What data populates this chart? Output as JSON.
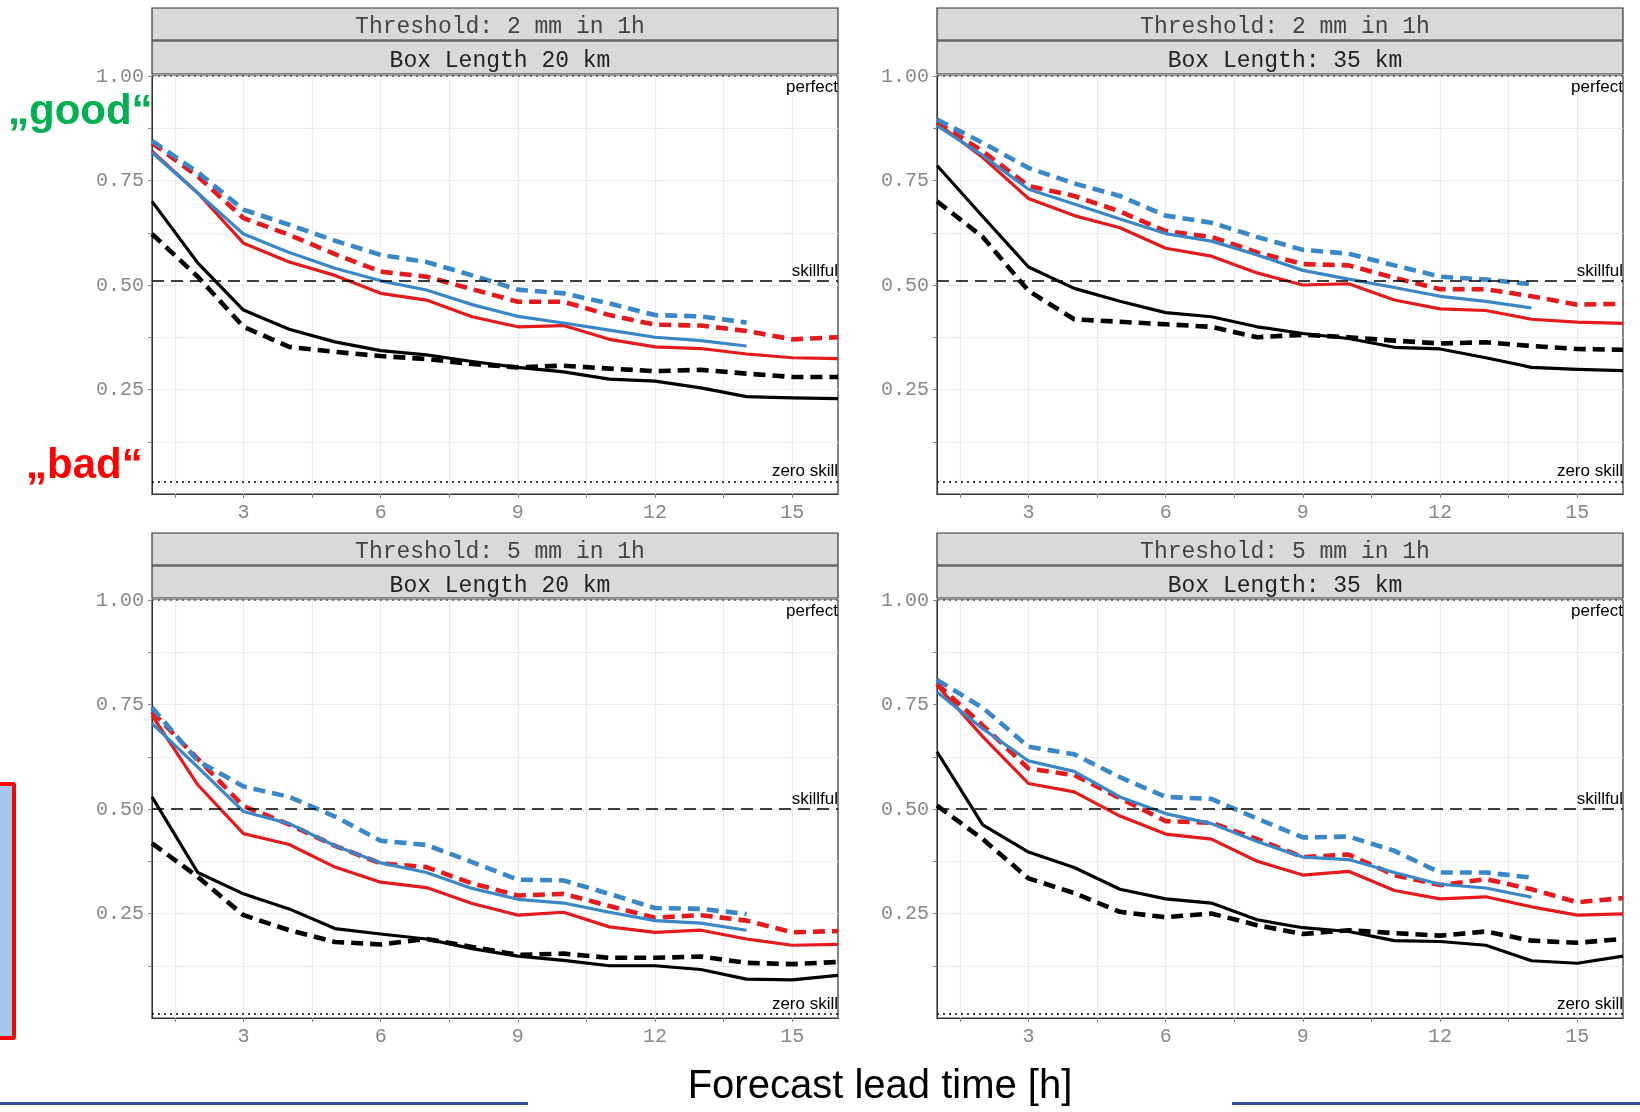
{
  "chart_data": [
    {
      "type": "line",
      "title": "Threshold: 2 mm in 1h",
      "subtitle": "Box Length 20 km",
      "annotations": [
        "„good“",
        "„bad“"
      ],
      "xlabel": "Forecast lead time [h]",
      "x": [
        1,
        2,
        3,
        4,
        5,
        6,
        7,
        8,
        9,
        10,
        11,
        12,
        13,
        14,
        15,
        16
      ],
      "series": [
        {
          "color": "#e41a1c",
          "line_style": "solid",
          "values": [
            0.82,
            0.72,
            0.6,
            0.555,
            0.523,
            0.48,
            0.464,
            0.424,
            0.4,
            0.403,
            0.37,
            0.352,
            0.348,
            0.335,
            0.326,
            0.324
          ]
        },
        {
          "color": "#e41a1c",
          "line_style": "dashed",
          "values": [
            0.84,
            0.76,
            0.66,
            0.62,
            0.574,
            0.532,
            0.52,
            0.49,
            0.46,
            0.46,
            0.428,
            0.405,
            0.403,
            0.39,
            0.37,
            0.375
          ]
        },
        {
          "color": "#3a87c8",
          "line_style": "solid",
          "values": [
            0.817,
            0.72,
            0.622,
            0.578,
            0.54,
            0.51,
            0.488,
            0.453,
            0.425,
            0.409,
            0.392,
            0.375,
            0.367,
            0.354,
            null,
            null
          ]
        },
        {
          "color": "#3a87c8",
          "line_style": "dashed",
          "values": [
            0.845,
            0.77,
            0.68,
            0.644,
            0.606,
            0.572,
            0.555,
            0.523,
            0.489,
            0.48,
            0.456,
            0.428,
            0.425,
            0.41,
            null,
            null
          ]
        },
        {
          "color": "#000000",
          "line_style": "solid",
          "values": [
            0.7,
            0.553,
            0.44,
            0.394,
            0.364,
            0.343,
            0.333,
            0.317,
            0.303,
            0.292,
            0.275,
            0.27,
            0.254,
            0.233,
            0.23,
            0.228
          ]
        },
        {
          "color": "#000000",
          "line_style": "dashed",
          "values": [
            0.622,
            0.52,
            0.4,
            0.352,
            0.34,
            0.33,
            0.323,
            0.311,
            0.303,
            0.307,
            0.3,
            0.294,
            0.297,
            0.288,
            0.28,
            0.28
          ]
        }
      ],
      "xlim": [
        1,
        16
      ],
      "xticks": [
        {
          "value": 1.5,
          "label": null
        },
        3,
        {
          "value": 4.5,
          "label": null
        },
        6,
        {
          "value": 7.5,
          "label": null
        },
        9,
        {
          "value": 10.5,
          "label": null
        },
        12,
        {
          "value": 13.5,
          "label": null
        },
        15
      ],
      "ylim": [
        0,
        1
      ],
      "yticks": [
        {
          "value": 0.125,
          "label": null
        },
        {
          "value": 0.25,
          "label": "0.25"
        },
        {
          "value": 0.375,
          "label": null
        },
        {
          "value": 0.5,
          "label": "0.50"
        },
        {
          "value": 0.625,
          "label": null
        },
        {
          "value": 0.75,
          "label": "0.75"
        },
        {
          "value": 0.875,
          "label": null
        },
        {
          "value": 1,
          "label": "1.00"
        }
      ],
      "ref_lines": [
        {
          "axis": "y",
          "value": 1,
          "label": "perfect",
          "line_style": "dotted",
          "color": "#555555"
        },
        {
          "axis": "y",
          "value": 0.51,
          "label": "skillful",
          "line_style": "dashed",
          "color": "#000000"
        },
        {
          "axis": "y",
          "value": 0.03,
          "label": "zero skill",
          "line_style": "dotted",
          "color": "#000000"
        }
      ],
      "grid": true,
      "marker": "none"
    },
    {
      "type": "line",
      "title": "Threshold: 2 mm in 1h",
      "subtitle": "Box Length: 35 km",
      "x": [
        1,
        2,
        3,
        4,
        5,
        6,
        7,
        8,
        9,
        10,
        11,
        12,
        13,
        14,
        15,
        16
      ],
      "series": [
        {
          "color": "#e41a1c",
          "line_style": "solid",
          "values": [
            0.887,
            0.805,
            0.707,
            0.666,
            0.637,
            0.588,
            0.569,
            0.529,
            0.5,
            0.503,
            0.464,
            0.443,
            0.439,
            0.418,
            0.411,
            0.408
          ]
        },
        {
          "color": "#e41a1c",
          "line_style": "dashed",
          "values": [
            0.89,
            0.82,
            0.737,
            0.713,
            0.676,
            0.629,
            0.615,
            0.578,
            0.55,
            0.547,
            0.517,
            0.49,
            0.49,
            0.473,
            0.453,
            0.455
          ]
        },
        {
          "color": "#3a87c8",
          "line_style": "solid",
          "values": [
            0.881,
            0.81,
            0.729,
            0.694,
            0.658,
            0.623,
            0.605,
            0.572,
            0.535,
            0.514,
            0.494,
            0.473,
            0.461,
            0.445,
            null,
            null
          ]
        },
        {
          "color": "#3a87c8",
          "line_style": "dashed",
          "values": [
            0.896,
            0.84,
            0.78,
            0.743,
            0.713,
            0.666,
            0.649,
            0.615,
            0.584,
            0.575,
            0.547,
            0.52,
            0.513,
            0.502,
            null,
            null
          ]
        },
        {
          "color": "#000000",
          "line_style": "solid",
          "values": [
            0.786,
            0.664,
            0.543,
            0.492,
            0.461,
            0.434,
            0.424,
            0.4,
            0.384,
            0.372,
            0.351,
            0.347,
            0.326,
            0.303,
            0.298,
            0.295
          ]
        },
        {
          "color": "#000000",
          "line_style": "dashed",
          "values": [
            0.7,
            0.615,
            0.486,
            0.418,
            0.412,
            0.406,
            0.4,
            0.375,
            0.381,
            0.375,
            0.367,
            0.36,
            0.363,
            0.354,
            0.347,
            0.345
          ]
        }
      ],
      "xlim": [
        1,
        16
      ],
      "xticks": [
        {
          "value": 1.5,
          "label": null
        },
        3,
        {
          "value": 4.5,
          "label": null
        },
        6,
        {
          "value": 7.5,
          "label": null
        },
        9,
        {
          "value": 10.5,
          "label": null
        },
        12,
        {
          "value": 13.5,
          "label": null
        },
        15
      ],
      "ylim": [
        0,
        1
      ],
      "yticks": [
        {
          "value": 0.125,
          "label": null
        },
        {
          "value": 0.25,
          "label": "0.25"
        },
        {
          "value": 0.375,
          "label": null
        },
        {
          "value": 0.5,
          "label": "0.50"
        },
        {
          "value": 0.625,
          "label": null
        },
        {
          "value": 0.75,
          "label": "0.75"
        },
        {
          "value": 0.875,
          "label": null
        },
        {
          "value": 1,
          "label": "1.00"
        }
      ],
      "ref_lines": [
        {
          "axis": "y",
          "value": 1,
          "label": "perfect",
          "line_style": "dotted",
          "color": "#555555"
        },
        {
          "axis": "y",
          "value": 0.51,
          "label": "skillful",
          "line_style": "dashed",
          "color": "#000000"
        },
        {
          "axis": "y",
          "value": 0.03,
          "label": "zero skill",
          "line_style": "dotted",
          "color": "#000000"
        }
      ],
      "grid": true,
      "marker": "none"
    },
    {
      "type": "line",
      "title": "Threshold: 5 mm in 1h",
      "subtitle": "Box Length 20 km",
      "x": [
        1,
        2,
        3,
        4,
        5,
        6,
        7,
        8,
        9,
        10,
        11,
        12,
        13,
        14,
        15,
        16
      ],
      "series": [
        {
          "color": "#e41a1c",
          "line_style": "solid",
          "values": [
            0.724,
            0.558,
            0.441,
            0.415,
            0.361,
            0.325,
            0.312,
            0.274,
            0.246,
            0.253,
            0.218,
            0.205,
            0.21,
            0.189,
            0.174,
            0.176
          ]
        },
        {
          "color": "#e41a1c",
          "line_style": "dashed",
          "values": [
            0.733,
            0.62,
            0.507,
            0.463,
            0.412,
            0.37,
            0.361,
            0.322,
            0.293,
            0.297,
            0.268,
            0.24,
            0.246,
            0.233,
            0.205,
            0.208
          ]
        },
        {
          "color": "#3a87c8",
          "line_style": "solid",
          "values": [
            0.705,
            0.6,
            0.494,
            0.465,
            0.412,
            0.371,
            0.348,
            0.31,
            0.284,
            0.275,
            0.253,
            0.233,
            0.227,
            0.21,
            null,
            null
          ]
        },
        {
          "color": "#3a87c8",
          "line_style": "dashed",
          "values": [
            0.743,
            0.615,
            0.554,
            0.529,
            0.482,
            0.424,
            0.414,
            0.373,
            0.331,
            0.329,
            0.297,
            0.263,
            0.261,
            0.249,
            null,
            null
          ]
        },
        {
          "color": "#000000",
          "line_style": "solid",
          "values": [
            0.529,
            0.348,
            0.297,
            0.261,
            0.214,
            0.201,
            0.189,
            0.166,
            0.148,
            0.138,
            0.125,
            0.125,
            0.116,
            0.093,
            0.091,
            0.102
          ]
        },
        {
          "color": "#000000",
          "line_style": "dashed",
          "values": [
            0.418,
            0.338,
            0.246,
            0.21,
            0.182,
            0.176,
            0.189,
            0.17,
            0.151,
            0.154,
            0.144,
            0.144,
            0.147,
            0.132,
            0.129,
            0.134
          ]
        }
      ],
      "xlim": [
        1,
        16
      ],
      "xticks": [
        {
          "value": 1.5,
          "label": null
        },
        3,
        {
          "value": 4.5,
          "label": null
        },
        6,
        {
          "value": 7.5,
          "label": null
        },
        9,
        {
          "value": 10.5,
          "label": null
        },
        12,
        {
          "value": 13.5,
          "label": null
        },
        15
      ],
      "ylim": [
        0,
        1
      ],
      "yticks": [
        {
          "value": 0.125,
          "label": null
        },
        {
          "value": 0.25,
          "label": "0.25"
        },
        {
          "value": 0.375,
          "label": null
        },
        {
          "value": 0.5,
          "label": "0.50"
        },
        {
          "value": 0.625,
          "label": null
        },
        {
          "value": 0.75,
          "label": "0.75"
        },
        {
          "value": 0.875,
          "label": null
        },
        {
          "value": 1,
          "label": "1.00"
        }
      ],
      "ref_lines": [
        {
          "axis": "y",
          "value": 1,
          "label": "perfect",
          "line_style": "dotted",
          "color": "#555555"
        },
        {
          "axis": "y",
          "value": 0.5,
          "label": "skillful",
          "line_style": "dashed",
          "color": "#000000"
        },
        {
          "axis": "y",
          "value": 0.01,
          "label": "zero skill",
          "line_style": "dotted",
          "color": "#000000"
        }
      ],
      "grid": true,
      "marker": "none"
    },
    {
      "type": "line",
      "title": "Threshold: 5 mm in 1h",
      "subtitle": "Box Length: 35 km",
      "x": [
        1,
        2,
        3,
        4,
        5,
        6,
        7,
        8,
        9,
        10,
        11,
        12,
        13,
        14,
        15,
        16
      ],
      "series": [
        {
          "color": "#e41a1c",
          "line_style": "solid",
          "values": [
            0.796,
            0.673,
            0.561,
            0.541,
            0.483,
            0.44,
            0.428,
            0.375,
            0.342,
            0.351,
            0.305,
            0.285,
            0.29,
            0.266,
            0.246,
            0.249
          ]
        },
        {
          "color": "#e41a1c",
          "line_style": "dashed",
          "values": [
            0.799,
            0.7,
            0.597,
            0.581,
            0.526,
            0.471,
            0.467,
            0.428,
            0.385,
            0.391,
            0.342,
            0.318,
            0.332,
            0.308,
            0.277,
            0.287
          ]
        },
        {
          "color": "#3a87c8",
          "line_style": "solid",
          "values": [
            0.78,
            0.692,
            0.615,
            0.59,
            0.529,
            0.489,
            0.465,
            0.422,
            0.385,
            0.379,
            0.348,
            0.32,
            0.311,
            0.289,
            null,
            null
          ]
        },
        {
          "color": "#3a87c8",
          "line_style": "dashed",
          "values": [
            0.809,
            0.742,
            0.649,
            0.631,
            0.576,
            0.529,
            0.524,
            0.477,
            0.432,
            0.434,
            0.4,
            0.348,
            0.348,
            0.336,
            null,
            null
          ]
        },
        {
          "color": "#000000",
          "line_style": "solid",
          "values": [
            0.637,
            0.462,
            0.397,
            0.36,
            0.308,
            0.285,
            0.275,
            0.235,
            0.216,
            0.207,
            0.185,
            0.183,
            0.174,
            0.137,
            0.131,
            0.148
          ]
        },
        {
          "color": "#000000",
          "line_style": "dashed",
          "values": [
            0.508,
            0.428,
            0.334,
            0.299,
            0.254,
            0.241,
            0.25,
            0.222,
            0.201,
            0.21,
            0.203,
            0.197,
            0.207,
            0.185,
            0.18,
            0.189
          ]
        }
      ],
      "xlim": [
        1,
        16
      ],
      "xticks": [
        {
          "value": 1.5,
          "label": null
        },
        3,
        {
          "value": 4.5,
          "label": null
        },
        6,
        {
          "value": 7.5,
          "label": null
        },
        9,
        {
          "value": 10.5,
          "label": null
        },
        12,
        {
          "value": 13.5,
          "label": null
        },
        15
      ],
      "ylim": [
        0,
        1
      ],
      "yticks": [
        {
          "value": 0.125,
          "label": null
        },
        {
          "value": 0.25,
          "label": "0.25"
        },
        {
          "value": 0.375,
          "label": null
        },
        {
          "value": 0.5,
          "label": "0.50"
        },
        {
          "value": 0.625,
          "label": null
        },
        {
          "value": 0.75,
          "label": "0.75"
        },
        {
          "value": 0.875,
          "label": null
        },
        {
          "value": 1,
          "label": "1.00"
        }
      ],
      "ref_lines": [
        {
          "axis": "y",
          "value": 1,
          "label": "perfect",
          "line_style": "dotted",
          "color": "#555555"
        },
        {
          "axis": "y",
          "value": 0.5,
          "label": "skillful",
          "line_style": "dashed",
          "color": "#000000"
        },
        {
          "axis": "y",
          "value": 0.01,
          "label": "zero skill",
          "line_style": "dotted",
          "color": "#000000"
        }
      ],
      "grid": true,
      "marker": "none"
    }
  ]
}
